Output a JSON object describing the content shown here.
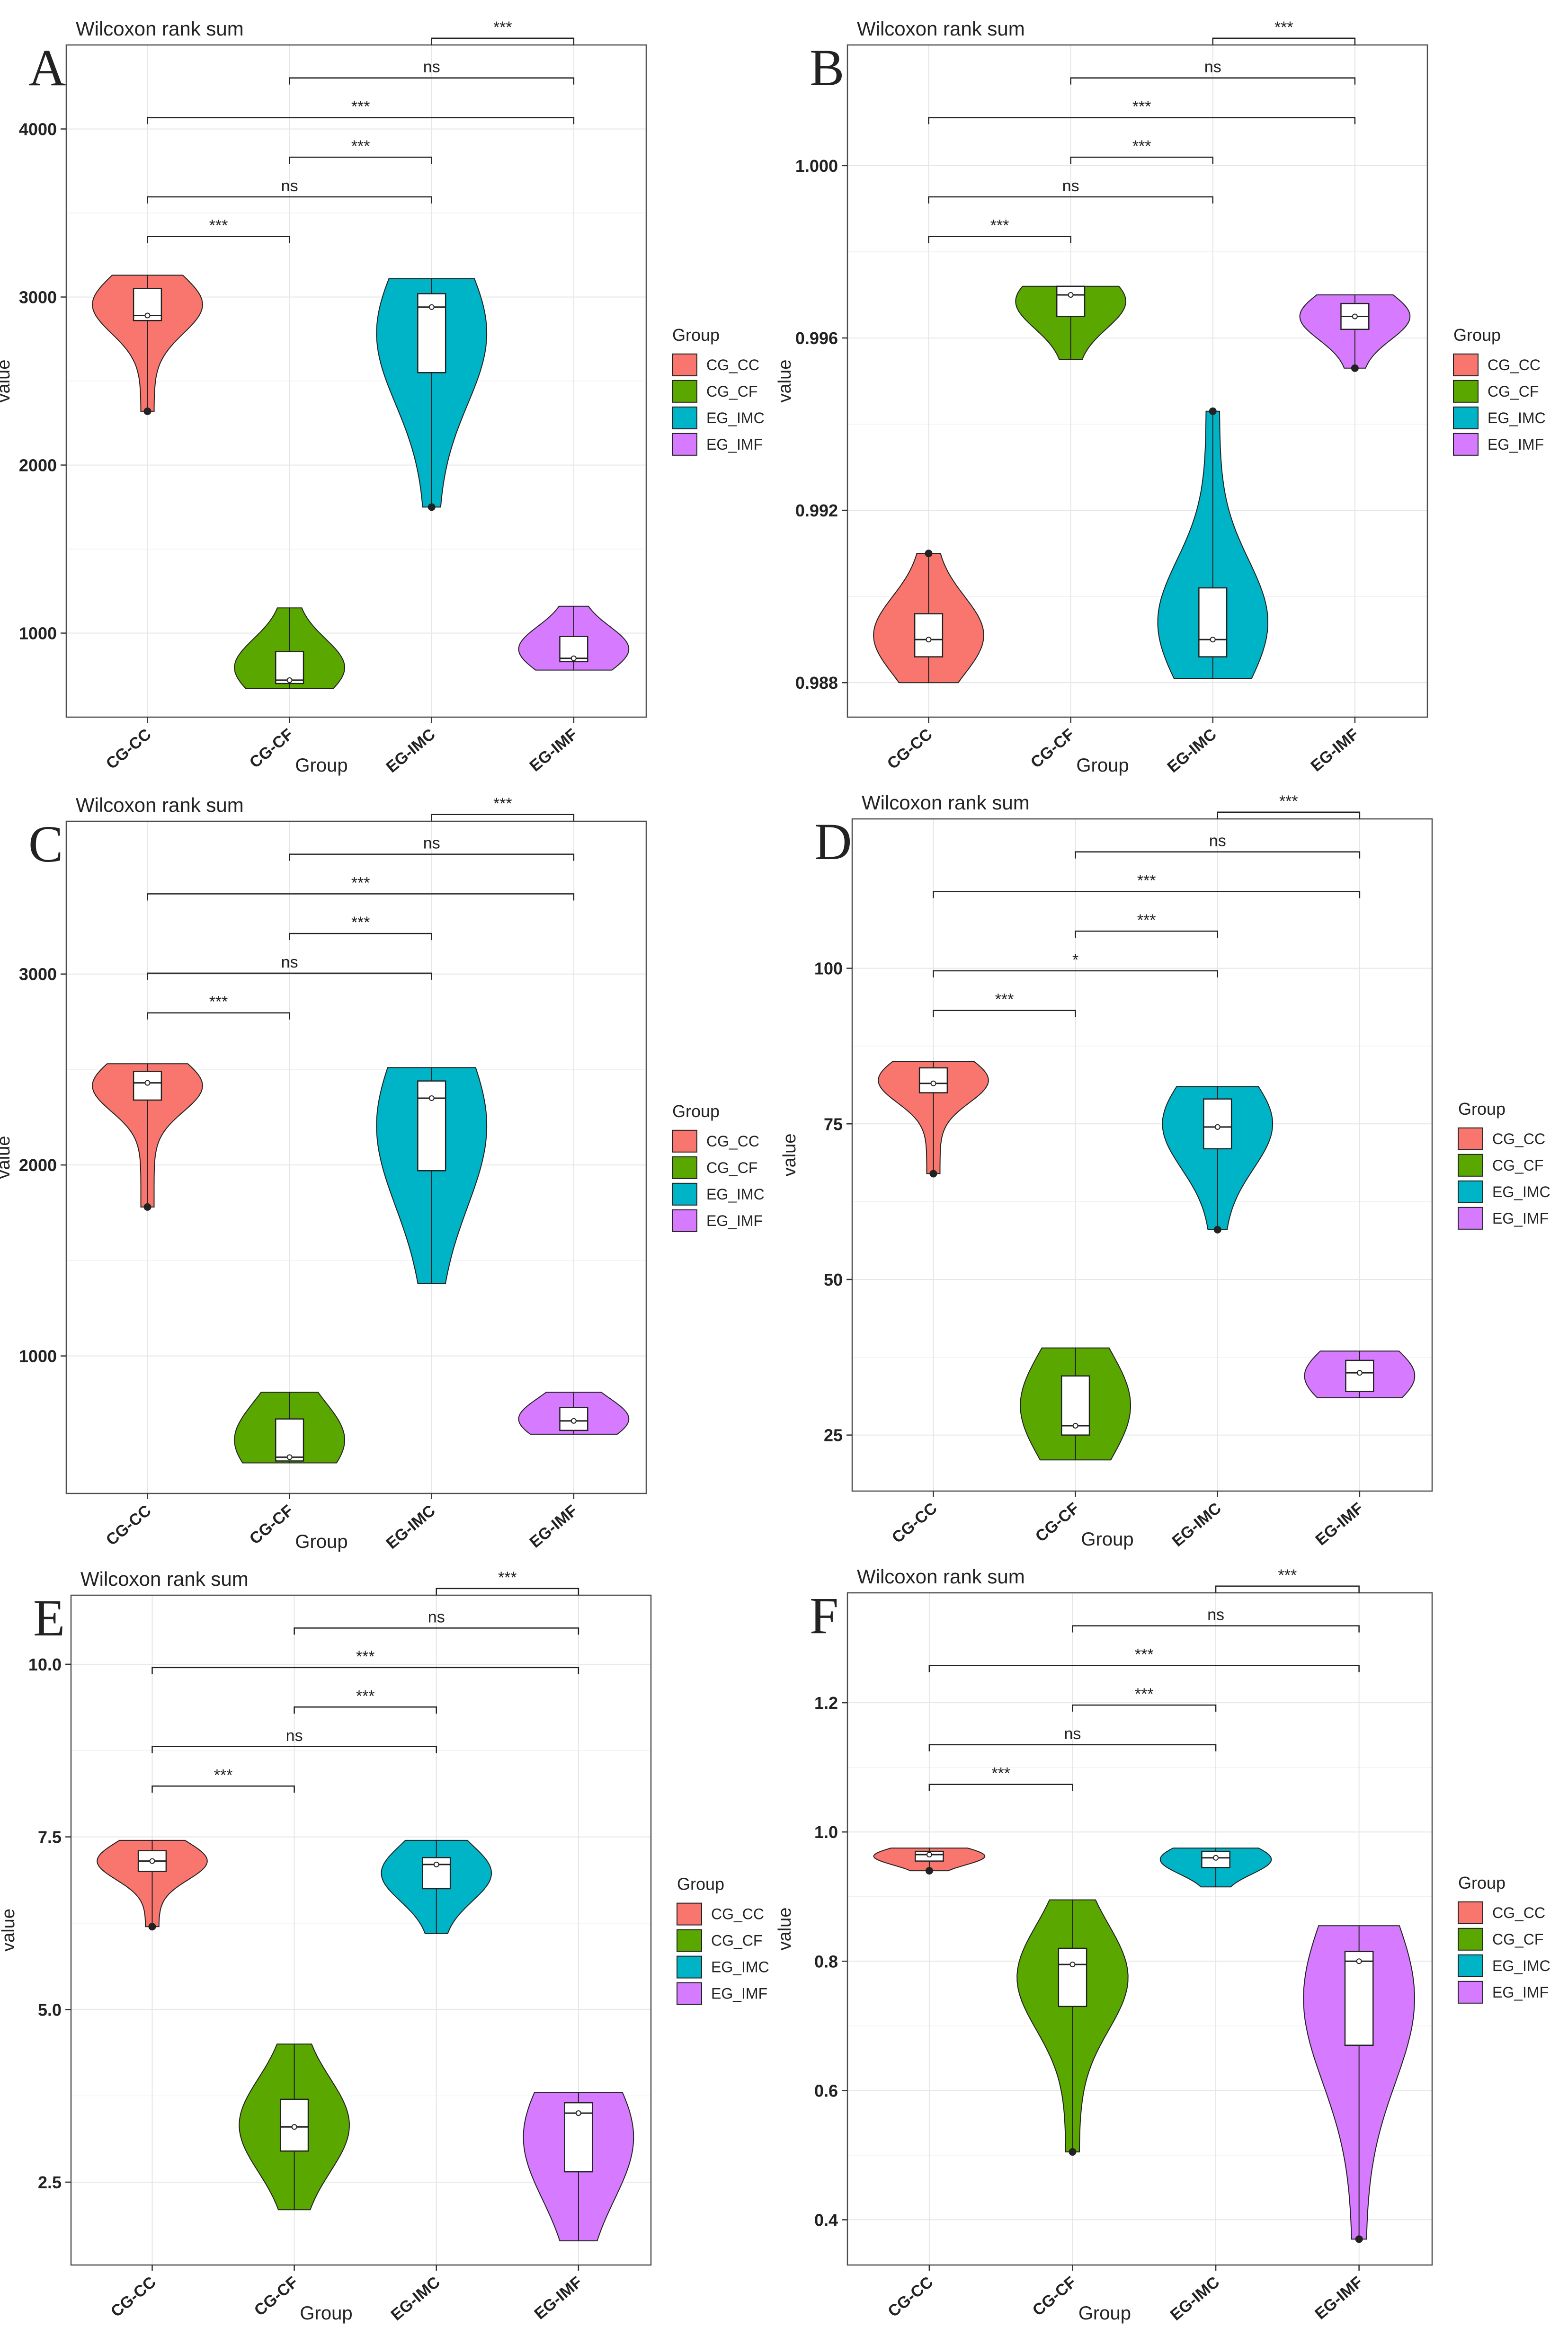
{
  "figure": {
    "panels": [
      {
        "letter": "A",
        "chart_data": {
          "type": "violin",
          "title": "Wilcoxon rank sum",
          "xlabel": "Group",
          "ylabel": "value",
          "categories": [
            "CG-CC",
            "CG-CF",
            "EG-IMC",
            "EG-IMF"
          ],
          "yticks": [
            "1000",
            "2000",
            "3000",
            "4000"
          ],
          "ytick_values": [
            1000,
            2000,
            3000,
            4000
          ],
          "ylim": [
            500,
            4500
          ],
          "series": [
            {
              "min": 2320,
              "q1": 2860,
              "median": 2890,
              "q3": 3050,
              "max": 3130
            },
            {
              "min": 670,
              "q1": 700,
              "median": 720,
              "q3": 890,
              "max": 1150
            },
            {
              "min": 1750,
              "q1": 2550,
              "median": 2940,
              "q3": 3020,
              "max": 3110
            },
            {
              "min": 780,
              "q1": 830,
              "median": 850,
              "q3": 980,
              "max": 1160
            }
          ],
          "outliers": [
            [
              0,
              2320
            ],
            [
              2,
              1750
            ]
          ],
          "comparisons": [
            {
              "pair": [
                "CG-CC",
                "CG-CF"
              ],
              "label": "***"
            },
            {
              "pair": [
                "CG-CC",
                "EG-IMC"
              ],
              "label": "ns"
            },
            {
              "pair": [
                "CG-CC",
                "EG-IMF"
              ],
              "label": "***"
            },
            {
              "pair": [
                "CG-CF",
                "EG-IMC"
              ],
              "label": "***"
            },
            {
              "pair": [
                "CG-CF",
                "EG-IMF"
              ],
              "label": "ns"
            },
            {
              "pair": [
                "EG-IMC",
                "EG-IMF"
              ],
              "label": "***"
            }
          ],
          "legend": {
            "title": "Group",
            "entries": [
              "CG_CC",
              "CG_CF",
              "EG_IMC",
              "EG_IMF"
            ]
          }
        }
      },
      {
        "letter": "B",
        "chart_data": {
          "type": "violin",
          "title": "Wilcoxon rank sum",
          "xlabel": "Group",
          "ylabel": "value",
          "categories": [
            "CG-CC",
            "CG-CF",
            "EG-IMC",
            "EG-IMF"
          ],
          "yticks": [
            "0.988",
            "0.992",
            "0.996",
            "1.000"
          ],
          "ytick_values": [
            0.988,
            0.992,
            0.996,
            1.0
          ],
          "ylim": [
            0.9872,
            1.0028
          ],
          "series": [
            {
              "min": 0.988,
              "q1": 0.9886,
              "median": 0.989,
              "q3": 0.9896,
              "max": 0.991
            },
            {
              "min": 0.9955,
              "q1": 0.9965,
              "median": 0.997,
              "q3": 0.9972,
              "max": 0.9972
            },
            {
              "min": 0.9881,
              "q1": 0.9886,
              "median": 0.989,
              "q3": 0.9902,
              "max": 0.9943
            },
            {
              "min": 0.9953,
              "q1": 0.9962,
              "median": 0.9965,
              "q3": 0.9968,
              "max": 0.997
            }
          ],
          "outliers": [
            [
              0,
              0.991
            ],
            [
              2,
              0.9943
            ],
            [
              3,
              0.9953
            ]
          ],
          "comparisons": [
            {
              "pair": [
                "CG-CC",
                "CG-CF"
              ],
              "label": "***"
            },
            {
              "pair": [
                "CG-CC",
                "EG-IMC"
              ],
              "label": "ns"
            },
            {
              "pair": [
                "CG-CC",
                "EG-IMF"
              ],
              "label": "***"
            },
            {
              "pair": [
                "CG-CF",
                "EG-IMC"
              ],
              "label": "***"
            },
            {
              "pair": [
                "CG-CF",
                "EG-IMF"
              ],
              "label": "ns"
            },
            {
              "pair": [
                "EG-IMC",
                "EG-IMF"
              ],
              "label": "***"
            }
          ],
          "legend": {
            "title": "Group",
            "entries": [
              "CG_CC",
              "CG_CF",
              "EG_IMC",
              "EG_IMF"
            ]
          }
        }
      },
      {
        "letter": "C",
        "chart_data": {
          "type": "violin",
          "title": "Wilcoxon rank sum",
          "xlabel": "Group",
          "ylabel": "value",
          "categories": [
            "CG-CC",
            "CG-CF",
            "EG-IMC",
            "EG-IMF"
          ],
          "yticks": [
            "1000",
            "2000",
            "3000"
          ],
          "ytick_values": [
            1000,
            2000,
            3000
          ],
          "ylim": [
            280,
            3800
          ],
          "series": [
            {
              "min": 1780,
              "q1": 2340,
              "median": 2430,
              "q3": 2490,
              "max": 2530
            },
            {
              "min": 440,
              "q1": 450,
              "median": 470,
              "q3": 670,
              "max": 810
            },
            {
              "min": 1380,
              "q1": 1970,
              "median": 2350,
              "q3": 2440,
              "max": 2510
            },
            {
              "min": 590,
              "q1": 610,
              "median": 660,
              "q3": 730,
              "max": 810
            }
          ],
          "outliers": [
            [
              0,
              1780
            ]
          ],
          "comparisons": [
            {
              "pair": [
                "CG-CC",
                "CG-CF"
              ],
              "label": "***"
            },
            {
              "pair": [
                "CG-CC",
                "EG-IMC"
              ],
              "label": "ns"
            },
            {
              "pair": [
                "CG-CC",
                "EG-IMF"
              ],
              "label": "***"
            },
            {
              "pair": [
                "CG-CF",
                "EG-IMC"
              ],
              "label": "***"
            },
            {
              "pair": [
                "CG-CF",
                "EG-IMF"
              ],
              "label": "ns"
            },
            {
              "pair": [
                "EG-IMC",
                "EG-IMF"
              ],
              "label": "***"
            }
          ],
          "legend": {
            "title": "Group",
            "entries": [
              "CG_CC",
              "CG_CF",
              "EG_IMC",
              "EG_IMF"
            ]
          }
        }
      },
      {
        "letter": "D",
        "chart_data": {
          "type": "violin",
          "title": "Wilcoxon rank sum",
          "xlabel": "Group",
          "ylabel": "value",
          "categories": [
            "CG-CC",
            "CG-CF",
            "EG-IMC",
            "EG-IMF"
          ],
          "yticks": [
            "25",
            "50",
            "75",
            "100"
          ],
          "ytick_values": [
            25,
            50,
            75,
            100
          ],
          "ylim": [
            16,
            124
          ],
          "series": [
            {
              "min": 67,
              "q1": 80,
              "median": 81.5,
              "q3": 84,
              "max": 85
            },
            {
              "min": 21,
              "q1": 25,
              "median": 26.5,
              "q3": 34.5,
              "max": 39
            },
            {
              "min": 58,
              "q1": 71,
              "median": 74.5,
              "q3": 79,
              "max": 81
            },
            {
              "min": 31,
              "q1": 32,
              "median": 35,
              "q3": 37,
              "max": 38.5
            }
          ],
          "outliers": [
            [
              0,
              67
            ],
            [
              2,
              58
            ]
          ],
          "comparisons": [
            {
              "pair": [
                "CG-CC",
                "CG-CF"
              ],
              "label": "***"
            },
            {
              "pair": [
                "CG-CC",
                "EG-IMC"
              ],
              "label": "*"
            },
            {
              "pair": [
                "CG-CC",
                "EG-IMF"
              ],
              "label": "***"
            },
            {
              "pair": [
                "CG-CF",
                "EG-IMC"
              ],
              "label": "***"
            },
            {
              "pair": [
                "CG-CF",
                "EG-IMF"
              ],
              "label": "ns"
            },
            {
              "pair": [
                "EG-IMC",
                "EG-IMF"
              ],
              "label": "***"
            }
          ],
          "legend": {
            "title": "Group",
            "entries": [
              "CG_CC",
              "CG_CF",
              "EG_IMC",
              "EG_IMF"
            ]
          }
        }
      },
      {
        "letter": "E",
        "chart_data": {
          "type": "violin",
          "title": "Wilcoxon rank sum",
          "xlabel": "Group",
          "ylabel": "value",
          "categories": [
            "CG-CC",
            "CG-CF",
            "EG-IMC",
            "EG-IMF"
          ],
          "yticks": [
            "2.5",
            "5.0",
            "7.5",
            "10.0"
          ],
          "ytick_values": [
            2.5,
            5.0,
            7.5,
            10.0
          ],
          "ylim": [
            1.3,
            11.0
          ],
          "series": [
            {
              "min": 6.2,
              "q1": 7.0,
              "median": 7.15,
              "q3": 7.3,
              "max": 7.45
            },
            {
              "min": 2.1,
              "q1": 2.95,
              "median": 3.3,
              "q3": 3.7,
              "max": 4.5
            },
            {
              "min": 6.1,
              "q1": 6.75,
              "median": 7.1,
              "q3": 7.2,
              "max": 7.45
            },
            {
              "min": 1.65,
              "q1": 2.65,
              "median": 3.5,
              "q3": 3.65,
              "max": 3.8
            }
          ],
          "outliers": [
            [
              0,
              6.2
            ]
          ],
          "comparisons": [
            {
              "pair": [
                "CG-CC",
                "CG-CF"
              ],
              "label": "***"
            },
            {
              "pair": [
                "CG-CC",
                "EG-IMC"
              ],
              "label": "ns"
            },
            {
              "pair": [
                "CG-CC",
                "EG-IMF"
              ],
              "label": "***"
            },
            {
              "pair": [
                "CG-CF",
                "EG-IMC"
              ],
              "label": "***"
            },
            {
              "pair": [
                "CG-CF",
                "EG-IMF"
              ],
              "label": "ns"
            },
            {
              "pair": [
                "EG-IMC",
                "EG-IMF"
              ],
              "label": "***"
            }
          ],
          "legend": {
            "title": "Group",
            "entries": [
              "CG_CC",
              "CG_CF",
              "EG_IMC",
              "EG_IMF"
            ]
          }
        }
      },
      {
        "letter": "F",
        "chart_data": {
          "type": "violin",
          "title": "Wilcoxon rank sum",
          "xlabel": "Group",
          "ylabel": "value",
          "categories": [
            "CG-CC",
            "CG-CF",
            "EG-IMC",
            "EG-IMF"
          ],
          "yticks": [
            "0.4",
            "0.6",
            "0.8",
            "1.0",
            "1.2"
          ],
          "ytick_values": [
            0.4,
            0.6,
            0.8,
            1.0,
            1.2
          ],
          "ylim": [
            0.33,
            1.37
          ],
          "series": [
            {
              "min": 0.94,
              "q1": 0.955,
              "median": 0.965,
              "q3": 0.97,
              "max": 0.975
            },
            {
              "min": 0.505,
              "q1": 0.73,
              "median": 0.795,
              "q3": 0.82,
              "max": 0.895
            },
            {
              "min": 0.915,
              "q1": 0.945,
              "median": 0.96,
              "q3": 0.97,
              "max": 0.975
            },
            {
              "min": 0.37,
              "q1": 0.67,
              "median": 0.8,
              "q3": 0.815,
              "max": 0.855
            }
          ],
          "outliers": [
            [
              0,
              0.94
            ],
            [
              1,
              0.505
            ],
            [
              3,
              0.37
            ]
          ],
          "comparisons": [
            {
              "pair": [
                "CG-CC",
                "CG-CF"
              ],
              "label": "***"
            },
            {
              "pair": [
                "CG-CC",
                "EG-IMC"
              ],
              "label": "ns"
            },
            {
              "pair": [
                "CG-CC",
                "EG-IMF"
              ],
              "label": "***"
            },
            {
              "pair": [
                "CG-CF",
                "EG-IMC"
              ],
              "label": "***"
            },
            {
              "pair": [
                "CG-CF",
                "EG-IMF"
              ],
              "label": "ns"
            },
            {
              "pair": [
                "EG-IMC",
                "EG-IMF"
              ],
              "label": "***"
            }
          ],
          "legend": {
            "title": "Group",
            "entries": [
              "CG_CC",
              "CG_CF",
              "EG_IMC",
              "EG_IMF"
            ]
          }
        }
      }
    ],
    "colors": {
      "CG_CC": "#F8766D",
      "CG_CF": "#5AA700",
      "EG_IMC": "#00B4C8",
      "EG_IMF": "#D67BFF",
      "grid": "#e6e6e6",
      "frame": "#4d4d4d"
    }
  }
}
